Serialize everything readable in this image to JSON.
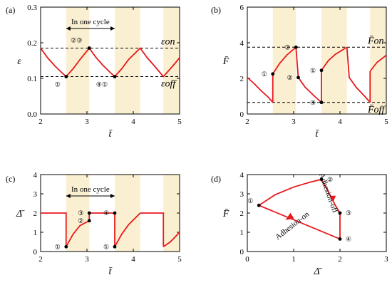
{
  "chart_data": [
    {
      "id": "a",
      "type": "line",
      "panel_label": "(a)",
      "xlabel": "t̄",
      "ylabel": "ε",
      "xlim": [
        2,
        5
      ],
      "ylim": [
        0,
        0.3
      ],
      "xticks": [
        "2",
        "3",
        "4",
        "5"
      ],
      "yticks": [
        "0.0",
        "0.1",
        "0.2",
        "0.3"
      ],
      "bands": [
        [
          2.55,
          3.05
        ],
        [
          3.6,
          4.15
        ],
        [
          4.65,
          5.0
        ]
      ],
      "hlines": [
        {
          "y": 0.185,
          "label": "εon"
        },
        {
          "y": 0.105,
          "label": "εoff"
        }
      ],
      "series": [
        {
          "x": [
            2.0,
            2.15,
            2.3,
            2.45,
            2.55,
            2.7,
            2.85,
            3.05,
            3.2,
            3.35,
            3.5,
            3.6,
            3.75,
            3.9,
            4.15,
            4.3,
            4.45,
            4.65,
            4.8,
            4.9,
            5.0
          ],
          "y": [
            0.185,
            0.158,
            0.136,
            0.117,
            0.105,
            0.127,
            0.153,
            0.185,
            0.158,
            0.136,
            0.117,
            0.105,
            0.127,
            0.153,
            0.185,
            0.158,
            0.136,
            0.105,
            0.127,
            0.142,
            0.158
          ]
        }
      ],
      "markers": [
        {
          "x": 2.55,
          "y": 0.105,
          "label": "①"
        },
        {
          "x": 3.05,
          "y": 0.185,
          "label": "②③"
        },
        {
          "x": 3.6,
          "y": 0.105,
          "label": "④①"
        }
      ],
      "cycle_label": "In one cycle",
      "cycle_span": [
        2.55,
        3.6
      ]
    },
    {
      "id": "b",
      "type": "line",
      "panel_label": "(b)",
      "xlabel": "t̄",
      "ylabel": "F̄",
      "xlim": [
        2,
        5
      ],
      "ylim": [
        0,
        6
      ],
      "xticks": [
        "2",
        "3",
        "4",
        "5"
      ],
      "yticks": [
        "0",
        "2",
        "4",
        "6"
      ],
      "bands": [
        [
          2.55,
          3.05
        ],
        [
          3.6,
          4.15
        ],
        [
          4.65,
          5.0
        ]
      ],
      "hlines": [
        {
          "y": 3.75,
          "label": "F̄on"
        },
        {
          "y": 0.65,
          "label": "F̄off"
        }
      ],
      "segments": [
        {
          "x": [
            2.0,
            2.15,
            2.3,
            2.45,
            2.55
          ],
          "y": [
            2.05,
            1.7,
            1.3,
            0.95,
            0.65
          ]
        },
        {
          "x": [
            2.55,
            2.55
          ],
          "y": [
            0.65,
            2.25
          ]
        },
        {
          "x": [
            2.55,
            2.7,
            2.85,
            3.05
          ],
          "y": [
            2.25,
            2.85,
            3.3,
            3.75
          ]
        },
        {
          "x": [
            3.05,
            3.1,
            3.25,
            3.45,
            3.6
          ],
          "y": [
            3.75,
            2.05,
            1.5,
            1.0,
            0.65
          ]
        },
        {
          "x": [
            3.6,
            3.6
          ],
          "y": [
            0.65,
            2.45
          ]
        },
        {
          "x": [
            3.6,
            3.75,
            3.9,
            4.15
          ],
          "y": [
            2.45,
            3.0,
            3.35,
            3.75
          ]
        },
        {
          "x": [
            4.15,
            4.2,
            4.35,
            4.55,
            4.65
          ],
          "y": [
            3.75,
            2.05,
            1.5,
            0.95,
            0.65
          ]
        },
        {
          "x": [
            4.65,
            4.65
          ],
          "y": [
            0.65,
            2.4
          ]
        },
        {
          "x": [
            4.65,
            4.8,
            5.0
          ],
          "y": [
            2.4,
            2.9,
            3.3
          ]
        }
      ],
      "markers": [
        {
          "x": 2.55,
          "y": 2.25,
          "label": "①"
        },
        {
          "x": 3.05,
          "y": 3.75,
          "label": "②"
        },
        {
          "x": 3.1,
          "y": 2.05,
          "label": "②"
        },
        {
          "x": 3.6,
          "y": 2.45,
          "label": "①"
        },
        {
          "x": 3.6,
          "y": 0.65,
          "label": "④"
        }
      ]
    },
    {
      "id": "c",
      "type": "line",
      "panel_label": "(c)",
      "xlabel": "t̄",
      "ylabel": "Δ̄",
      "xlim": [
        2,
        5
      ],
      "ylim": [
        0,
        4
      ],
      "xticks": [
        "2",
        "3",
        "4",
        "5"
      ],
      "yticks": [
        "0",
        "1",
        "2",
        "3",
        "4"
      ],
      "bands": [
        [
          2.55,
          3.05
        ],
        [
          3.6,
          4.15
        ],
        [
          4.65,
          5.0
        ]
      ],
      "segments": [
        {
          "x": [
            2.0,
            2.55,
            2.55
          ],
          "y": [
            2.0,
            2.0,
            0.25
          ]
        },
        {
          "x": [
            2.55,
            2.7,
            2.85,
            3.05
          ],
          "y": [
            0.25,
            0.9,
            1.35,
            1.6
          ]
        },
        {
          "x": [
            3.05,
            3.05
          ],
          "y": [
            1.6,
            2.0
          ]
        },
        {
          "x": [
            3.05,
            3.6,
            3.6
          ],
          "y": [
            2.0,
            2.0,
            0.25
          ]
        },
        {
          "x": [
            3.6,
            3.75,
            3.9,
            4.15
          ],
          "y": [
            0.25,
            0.9,
            1.4,
            2.0
          ]
        },
        {
          "x": [
            4.15,
            4.65,
            4.65
          ],
          "y": [
            2.0,
            2.0,
            0.25
          ]
        },
        {
          "x": [
            4.65,
            4.8,
            5.0
          ],
          "y": [
            0.25,
            0.5,
            1.0
          ]
        }
      ],
      "markers": [
        {
          "x": 2.55,
          "y": 0.25,
          "label": "①"
        },
        {
          "x": 3.05,
          "y": 1.6,
          "label": "②"
        },
        {
          "x": 3.05,
          "y": 2.0,
          "label": "③"
        },
        {
          "x": 3.6,
          "y": 2.0,
          "label": "④"
        },
        {
          "x": 3.6,
          "y": 0.25,
          "label": "①"
        }
      ],
      "cycle_label": "In one cycle",
      "cycle_span": [
        2.55,
        3.6
      ]
    },
    {
      "id": "d",
      "type": "line",
      "panel_label": "(d)",
      "xlabel": "Δ̄",
      "ylabel": "F̄",
      "xlim": [
        0,
        3
      ],
      "ylim": [
        0,
        4
      ],
      "xticks": [
        "0",
        "1",
        "2",
        "3"
      ],
      "yticks": [
        "0",
        "1",
        "2",
        "3",
        "4"
      ],
      "segments": [
        {
          "x": [
            0.25,
            0.6,
            1.0,
            1.35,
            1.6
          ],
          "y": [
            2.4,
            2.95,
            3.35,
            3.6,
            3.75
          ]
        },
        {
          "x": [
            1.6,
            1.75,
            1.9,
            2.0
          ],
          "y": [
            3.75,
            3.1,
            2.4,
            2.0
          ]
        },
        {
          "x": [
            2.0,
            2.0
          ],
          "y": [
            2.0,
            0.65
          ]
        },
        {
          "x": [
            2.0,
            0.25
          ],
          "y": [
            0.65,
            2.4
          ]
        }
      ],
      "arrows": [
        {
          "x": 1.85,
          "y": 2.75,
          "dir": "down"
        },
        {
          "x": 0.9,
          "y": 1.75,
          "dir": "up-left"
        }
      ],
      "markers": [
        {
          "x": 0.25,
          "y": 2.4,
          "label": "①"
        },
        {
          "x": 1.6,
          "y": 3.75,
          "label": "②"
        },
        {
          "x": 2.0,
          "y": 2.0,
          "label": "③"
        },
        {
          "x": 2.0,
          "y": 0.65,
          "label": "④"
        }
      ],
      "annotations": [
        {
          "text": "Adhesion-off"
        },
        {
          "text": "Adhesion-on"
        }
      ]
    }
  ]
}
